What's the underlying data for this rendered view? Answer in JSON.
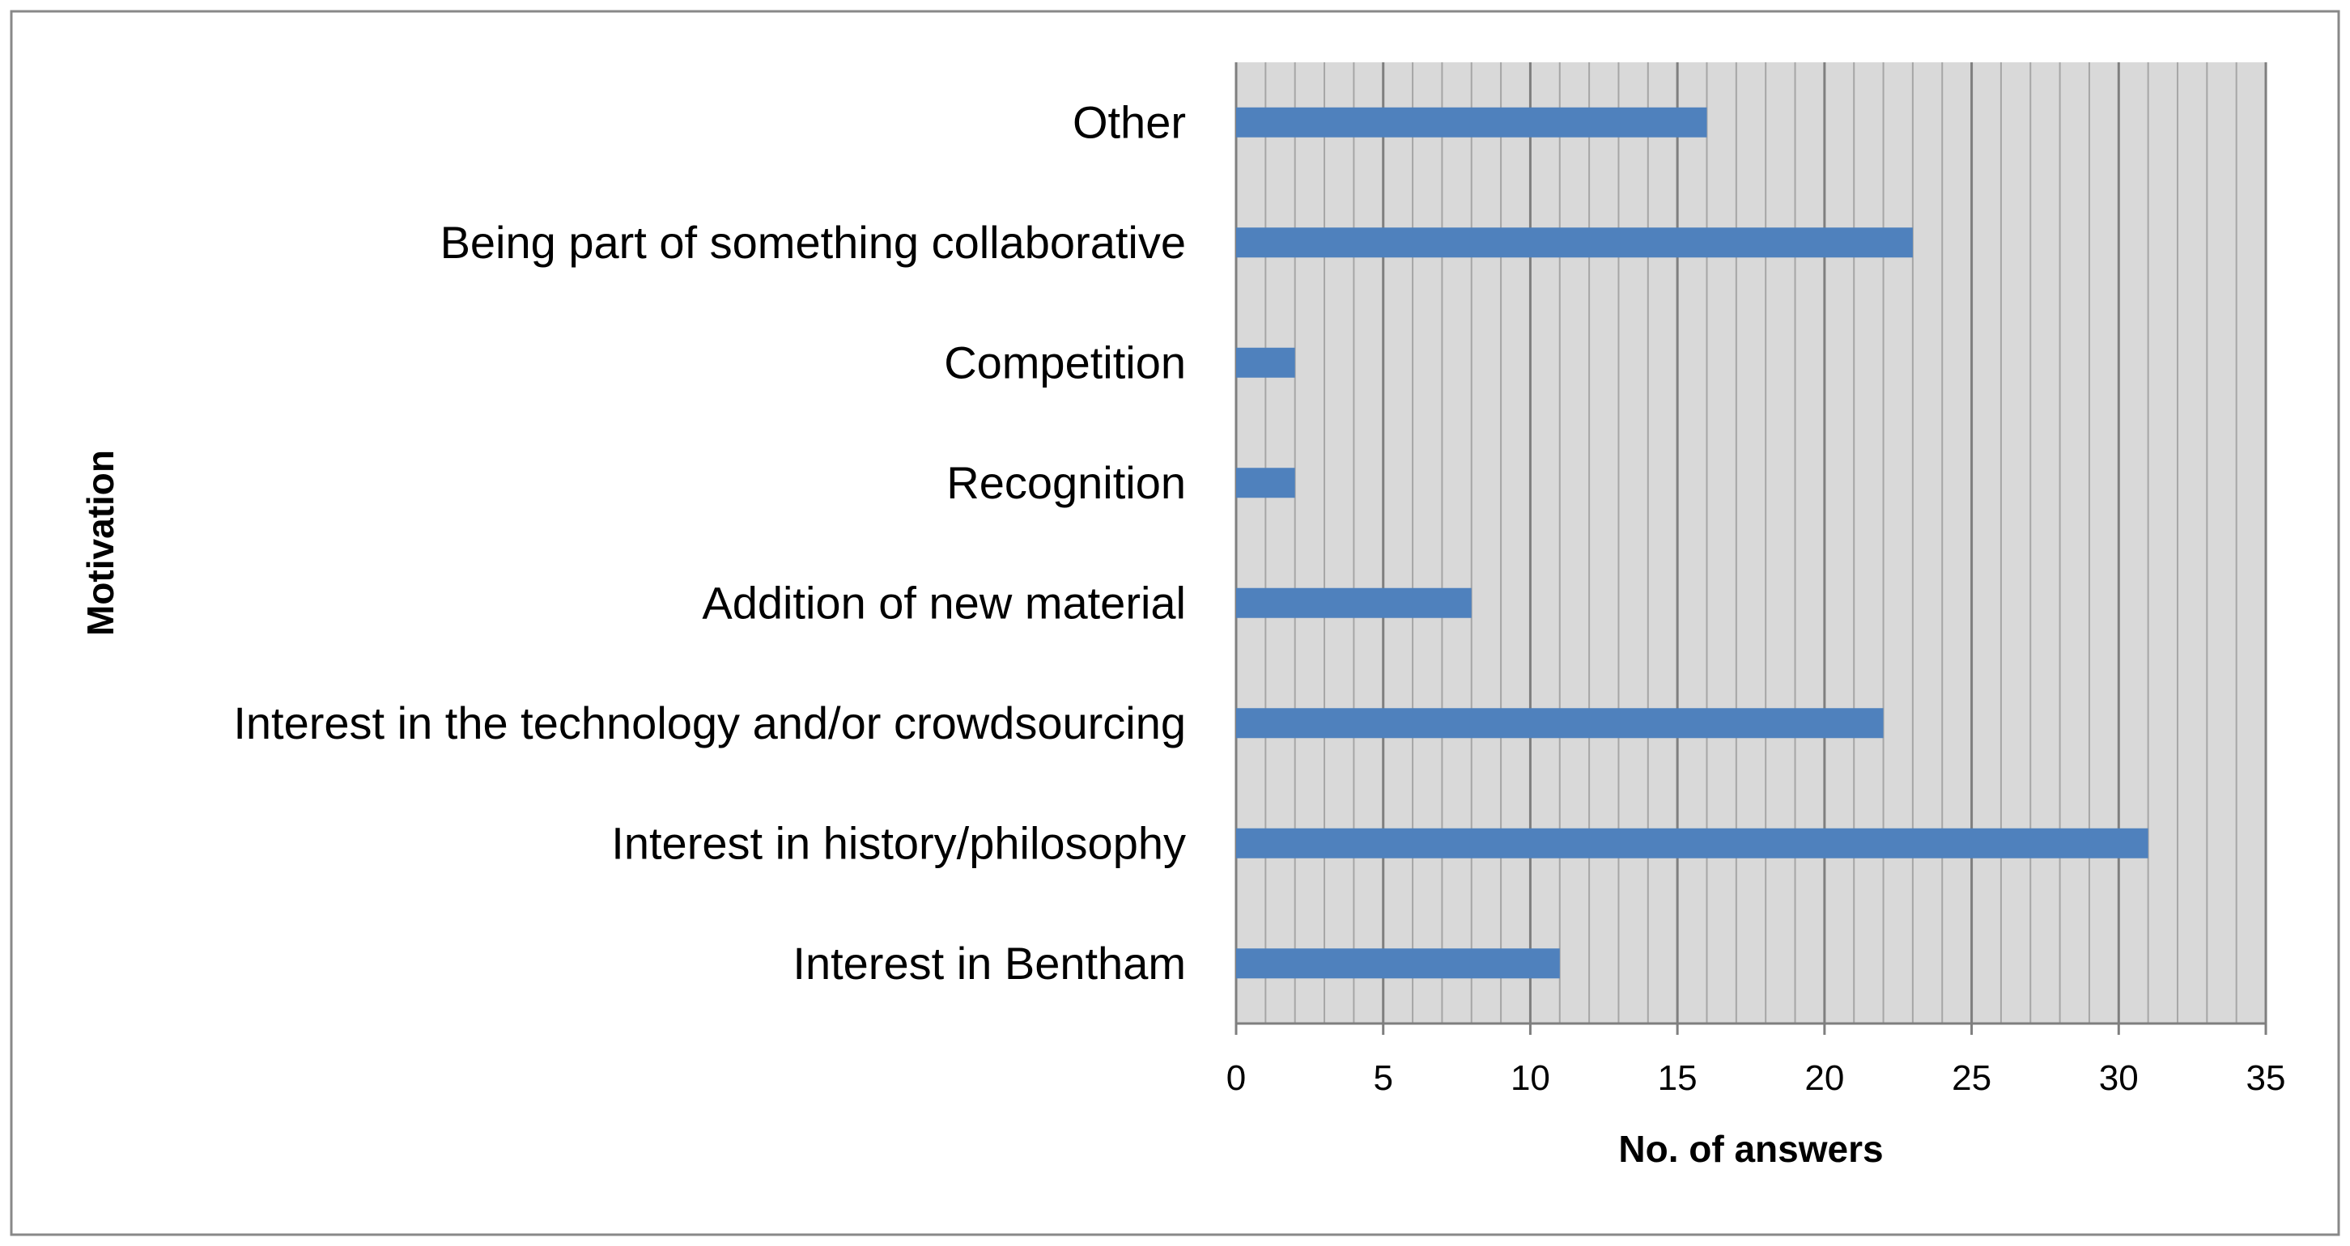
{
  "chart_data": {
    "type": "bar",
    "orientation": "horizontal",
    "title": "",
    "xlabel": "No. of answers",
    "ylabel": "Motivation",
    "xlim": [
      0,
      35
    ],
    "x_major_ticks": [
      0,
      5,
      10,
      15,
      20,
      25,
      30,
      35
    ],
    "x_minor_step": 1,
    "grid": true,
    "legend": "none",
    "categories": [
      "Other",
      "Being part of something collaborative",
      "Competition",
      "Recognition",
      "Addition of new material",
      "Interest in the technology and/or crowdsourcing",
      "Interest in history/philosophy",
      "Interest in Bentham"
    ],
    "values": [
      16,
      23,
      2,
      2,
      8,
      22,
      31,
      11
    ],
    "colors": {
      "bar": "#4f81bd",
      "plot_background": "#d9d9d9",
      "major_grid": "#7f7f7f",
      "minor_grid": "#a6a6a6",
      "frame": "#7f7f7f"
    }
  }
}
